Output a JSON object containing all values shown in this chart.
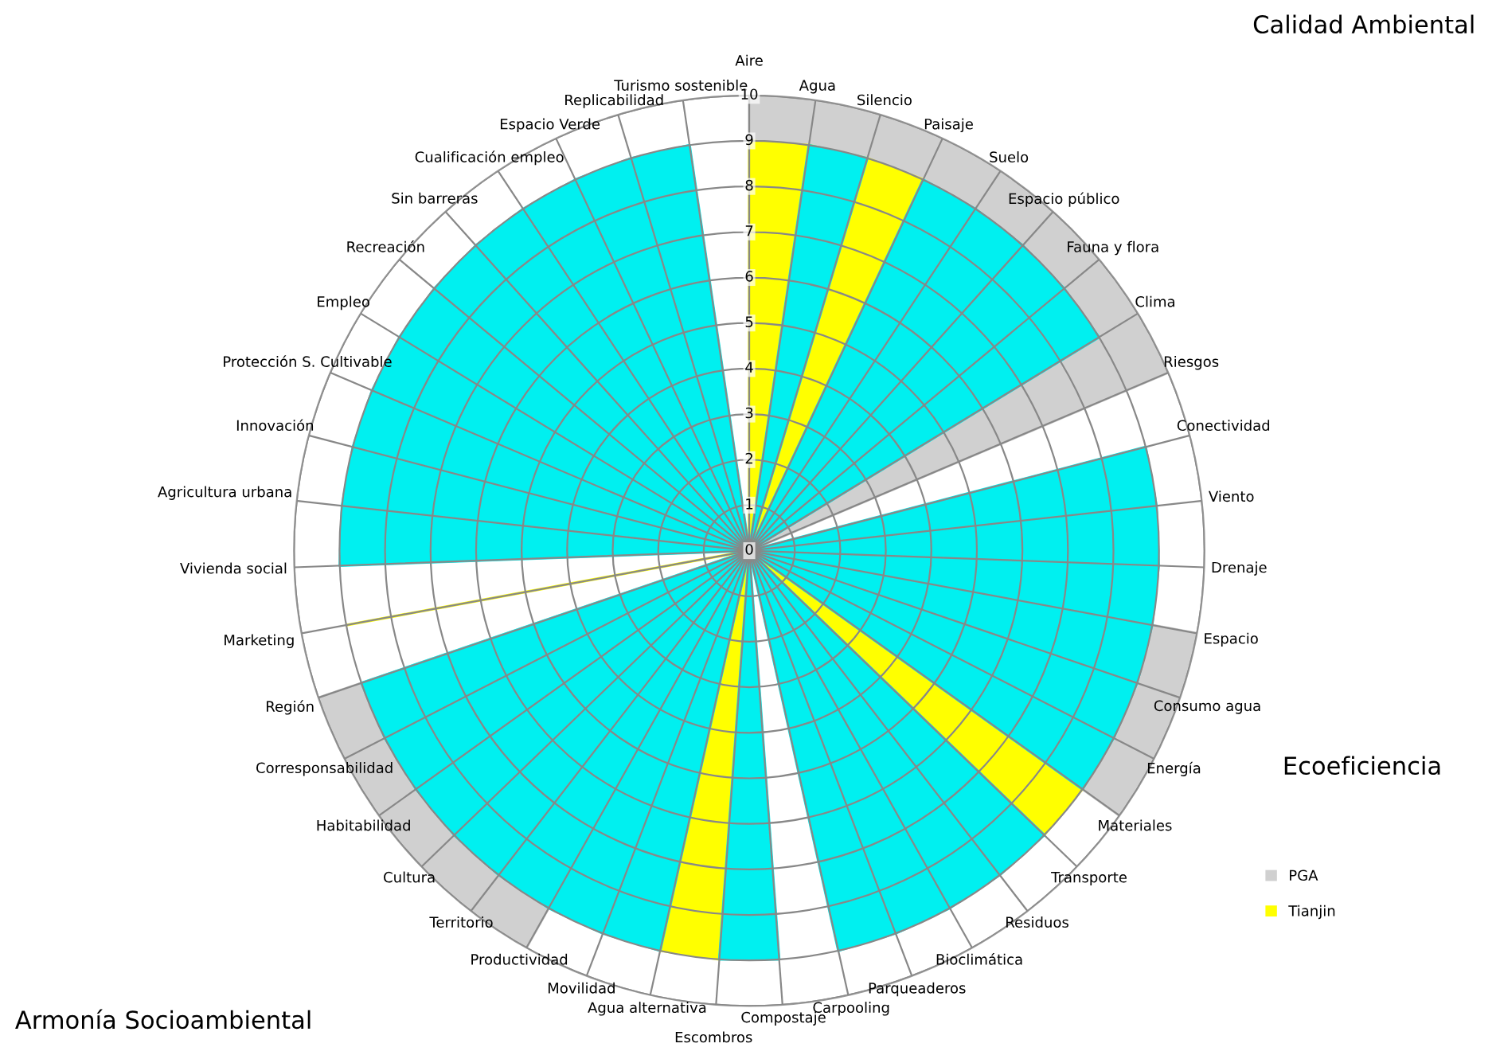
{
  "chart_data": {
    "type": "radar",
    "categories": [
      "Aire",
      "Agua",
      "Silencio",
      "Paisaje",
      "Suelo",
      "Espacio público",
      "Fauna y flora",
      "Clima",
      "Riesgos",
      "Conectividad",
      "Viento",
      "Drenaje",
      "Espacio",
      "Consumo agua",
      "Energía",
      "Materiales",
      "Transporte",
      "Residuos",
      "Bioclimática",
      "Parqueaderos",
      "Carpooling",
      "Compostaje",
      "Escombros",
      "Agua alternativa",
      "Movilidad",
      "Productividad",
      "Territorio",
      "Cultura",
      "Habitabilidad",
      "Corresponsabilidad",
      "Región",
      "Marketing",
      "Vivienda social",
      "Agricultura urbana",
      "Innovación",
      "Protección S. Cultivable",
      "Empleo",
      "Recreación",
      "Sin barreras",
      "Cualificación empleo",
      "Espacio Verde",
      "Replicabilidad",
      "Turismo sostenible"
    ],
    "series": [
      {
        "name": "PGA",
        "color": "#d0d0d0",
        "values": [
          10,
          10,
          10,
          10,
          10,
          10,
          10,
          10,
          10,
          0,
          0,
          0,
          10,
          10,
          10,
          10,
          0,
          0,
          0,
          0,
          0,
          0,
          0,
          0,
          0,
          10,
          10,
          10,
          10,
          10,
          10,
          0,
          0,
          0,
          0,
          0,
          0,
          0,
          0,
          0,
          0,
          0,
          0
        ]
      },
      {
        "name": "Tianjin",
        "color": "#ffff00",
        "values": [
          9,
          9,
          9,
          9,
          0,
          0,
          0,
          0,
          0,
          0,
          0,
          0,
          0,
          0,
          0,
          9,
          9,
          0,
          0,
          0,
          0,
          0,
          9,
          9,
          0,
          0,
          0,
          0,
          0,
          0,
          0,
          9,
          0,
          0,
          0,
          0,
          0,
          0,
          0,
          0,
          0,
          0,
          0
        ]
      },
      {
        "color": "#00f0f0",
        "values": [
          0,
          9,
          9,
          0,
          0,
          0,
          0,
          0,
          0,
          9,
          9,
          9,
          9,
          9,
          9,
          9,
          0,
          0,
          0,
          0,
          0,
          9,
          9,
          0,
          0,
          0,
          0,
          0,
          0,
          0,
          0,
          0,
          9,
          9,
          9,
          9,
          9,
          9,
          9,
          9,
          9,
          9,
          9
        ]
      },
      {
        "color": "#00f0f0",
        "values": [
          0,
          0,
          0,
          9,
          9,
          9,
          9,
          9,
          0,
          0,
          0,
          0,
          0,
          0,
          0,
          0,
          9,
          9,
          9,
          9,
          9,
          0,
          0,
          9,
          9,
          9,
          9,
          9,
          9,
          9,
          9,
          0,
          0,
          0,
          0,
          0,
          0,
          0,
          0,
          0,
          0,
          0,
          0
        ]
      }
    ],
    "ylim": [
      0,
      10
    ],
    "yticks": [
      0,
      1,
      2,
      3,
      4,
      5,
      6,
      7,
      8,
      9,
      10
    ],
    "grid": true,
    "legend": "bottom right",
    "annotations": [
      "Calidad Ambiental",
      "Ecoeficiencia",
      "Armonía Socioambiental"
    ]
  }
}
